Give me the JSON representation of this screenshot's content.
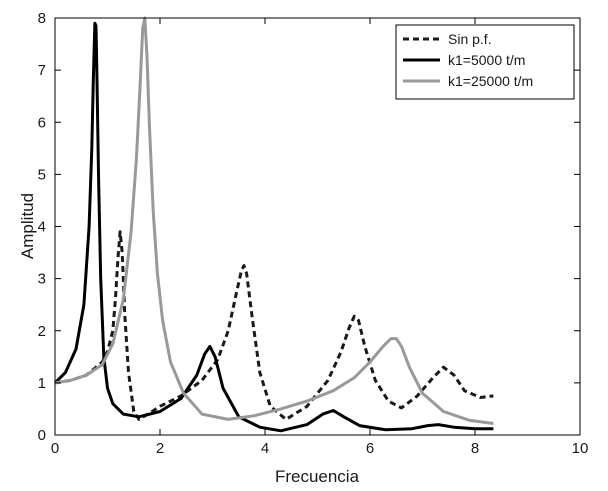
{
  "chart_data": {
    "type": "line",
    "title": "",
    "xlabel": "Frecuencia",
    "ylabel": "Amplitud",
    "xlim": [
      0,
      10
    ],
    "ylim": [
      0,
      8
    ],
    "xticks": [
      0,
      2,
      4,
      6,
      8,
      10
    ],
    "yticks": [
      0,
      1,
      2,
      3,
      4,
      5,
      6,
      7,
      8
    ],
    "grid": false,
    "legend_position": "top-right",
    "series": [
      {
        "name": "Sin p.f.",
        "color": "#1a1a1a",
        "dash": "dashed",
        "x": [
          0,
          0.3,
          0.6,
          0.9,
          1.0,
          1.1,
          1.15,
          1.2,
          1.24,
          1.28,
          1.33,
          1.4,
          1.5,
          1.6,
          1.8,
          2.0,
          2.4,
          2.8,
          3.1,
          3.3,
          3.45,
          3.55,
          3.6,
          3.65,
          3.75,
          3.9,
          4.1,
          4.4,
          4.8,
          5.2,
          5.45,
          5.6,
          5.7,
          5.78,
          5.9,
          6.1,
          6.35,
          6.6,
          6.9,
          7.2,
          7.4,
          7.6,
          7.8,
          8.1,
          8.35
        ],
        "y": [
          1.0,
          1.05,
          1.15,
          1.4,
          1.6,
          2.0,
          2.6,
          3.4,
          3.9,
          3.5,
          2.3,
          1.2,
          0.45,
          0.3,
          0.42,
          0.55,
          0.75,
          1.05,
          1.45,
          2.0,
          2.7,
          3.15,
          3.25,
          3.1,
          2.3,
          1.2,
          0.55,
          0.3,
          0.55,
          1.05,
          1.6,
          2.05,
          2.28,
          2.2,
          1.7,
          1.05,
          0.65,
          0.52,
          0.75,
          1.1,
          1.3,
          1.15,
          0.85,
          0.72,
          0.75
        ]
      },
      {
        "name": "k1=5000 t/m",
        "color": "#000000",
        "dash": "solid",
        "x": [
          0,
          0.2,
          0.4,
          0.55,
          0.65,
          0.7,
          0.73,
          0.76,
          0.78,
          0.8,
          0.83,
          0.87,
          0.93,
          1.0,
          1.1,
          1.3,
          1.6,
          2.0,
          2.4,
          2.7,
          2.85,
          2.95,
          3.05,
          3.2,
          3.5,
          3.9,
          4.3,
          4.8,
          5.1,
          5.3,
          5.5,
          5.8,
          6.3,
          6.8,
          7.1,
          7.3,
          7.6,
          8.0,
          8.35
        ],
        "y": [
          1.0,
          1.2,
          1.65,
          2.5,
          4.0,
          5.5,
          6.8,
          7.9,
          7.85,
          6.8,
          4.9,
          3.0,
          1.5,
          0.9,
          0.6,
          0.4,
          0.35,
          0.45,
          0.7,
          1.15,
          1.55,
          1.7,
          1.5,
          0.9,
          0.35,
          0.15,
          0.08,
          0.2,
          0.4,
          0.47,
          0.35,
          0.18,
          0.1,
          0.12,
          0.18,
          0.2,
          0.15,
          0.12,
          0.12
        ]
      },
      {
        "name": "k1=25000 t/m",
        "color": "#999999",
        "dash": "solid",
        "x": [
          0,
          0.3,
          0.6,
          0.9,
          1.1,
          1.3,
          1.45,
          1.55,
          1.62,
          1.67,
          1.71,
          1.75,
          1.8,
          1.87,
          1.95,
          2.05,
          2.2,
          2.45,
          2.8,
          3.3,
          3.8,
          4.3,
          4.8,
          5.3,
          5.7,
          6.0,
          6.25,
          6.4,
          6.5,
          6.6,
          6.75,
          7.0,
          7.4,
          7.9,
          8.35
        ],
        "y": [
          1.0,
          1.05,
          1.15,
          1.35,
          1.75,
          2.6,
          3.9,
          5.3,
          6.7,
          7.8,
          8.0,
          7.3,
          5.9,
          4.3,
          3.1,
          2.2,
          1.4,
          0.8,
          0.4,
          0.3,
          0.37,
          0.5,
          0.65,
          0.85,
          1.1,
          1.4,
          1.7,
          1.85,
          1.85,
          1.7,
          1.3,
          0.8,
          0.45,
          0.28,
          0.22
        ]
      }
    ]
  }
}
